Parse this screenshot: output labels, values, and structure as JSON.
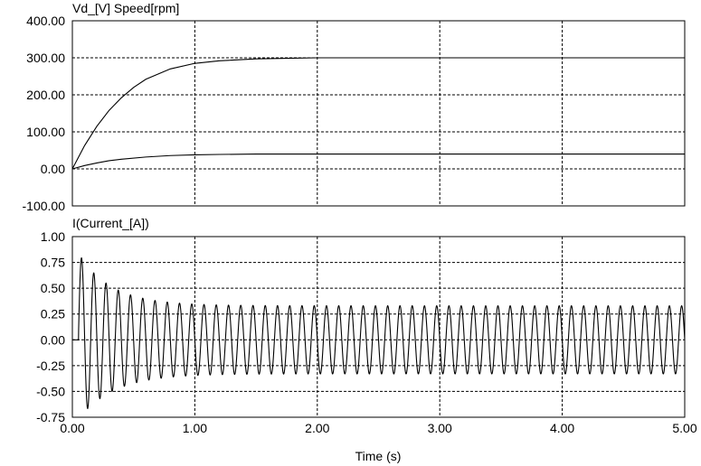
{
  "chart_data": [
    {
      "type": "line",
      "title": "Vd_[V]   Speed[rpm]",
      "xlim": [
        0,
        5
      ],
      "ylim": [
        -100,
        400
      ],
      "xticks": [],
      "yticks": [
        "400.00",
        "300.00",
        "200.00",
        "100.00",
        "0.00",
        "-100.00"
      ],
      "ytick_values": [
        400,
        300,
        200,
        100,
        0,
        -100
      ],
      "grid": true,
      "series": [
        {
          "x": [
            0,
            0.1,
            0.2,
            0.3,
            0.4,
            0.5,
            0.6,
            0.8,
            1.0,
            1.2,
            1.5,
            1.8,
            2.0,
            3.0,
            4.0,
            5.0
          ],
          "y": [
            0,
            63,
            115,
            158,
            192,
            220,
            242,
            270,
            285,
            292,
            297,
            299,
            300,
            300,
            300,
            300
          ]
        },
        {
          "x": [
            0,
            0.1,
            0.2,
            0.3,
            0.4,
            0.6,
            0.8,
            1.0,
            1.2,
            1.5,
            2.0,
            3.0,
            4.0,
            5.0
          ],
          "y": [
            0,
            9,
            16,
            22,
            26,
            32,
            36,
            38,
            39,
            40,
            40,
            40,
            40,
            40
          ]
        }
      ]
    },
    {
      "type": "line",
      "title": "I(Current_[A])",
      "xlabel": "Time (s)",
      "xlim": [
        0,
        5
      ],
      "ylim": [
        -0.75,
        1.0
      ],
      "xticks": [
        "0.00",
        "1.00",
        "2.00",
        "3.00",
        "4.00",
        "5.00"
      ],
      "xtick_values": [
        0,
        1,
        2,
        3,
        4,
        5
      ],
      "yticks": [
        "1.00",
        "0.75",
        "0.50",
        "0.25",
        "0.00",
        "-0.25",
        "-0.50",
        "-0.75"
      ],
      "ytick_values": [
        1.0,
        0.75,
        0.5,
        0.25,
        0.0,
        -0.25,
        -0.5,
        -0.75
      ],
      "grid": true,
      "series": [
        {
          "waveform": "damped-sinusoid",
          "frequency_hz": 10,
          "start_time_s": 0.05,
          "initial_amplitude": 0.8,
          "steady_amplitude": 0.33,
          "envelope_peaks": [
            {
              "t": 0.16,
              "value": 0.8
            },
            {
              "t": 0.28,
              "value": -0.72
            },
            {
              "t": 0.4,
              "value": 0.67
            },
            {
              "t": 0.45,
              "value": -0.55
            },
            {
              "t": 0.52,
              "value": 0.52
            },
            {
              "t": 0.57,
              "value": -0.48
            },
            {
              "t": 1.0,
              "value": 0.33
            },
            {
              "t": 5.0,
              "value": 0.33
            }
          ]
        }
      ]
    }
  ]
}
